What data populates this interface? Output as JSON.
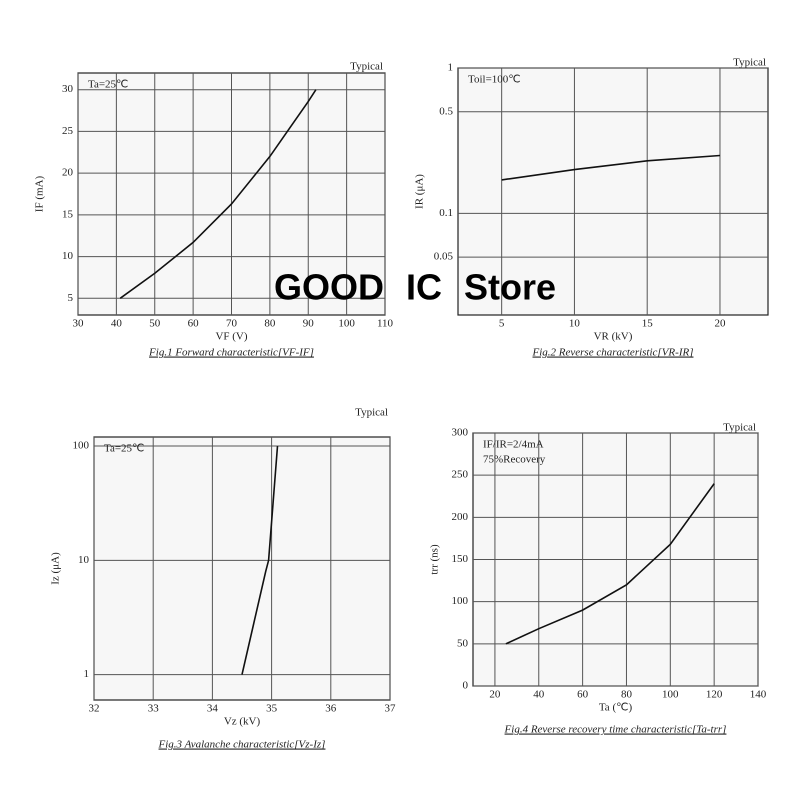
{
  "watermark": "GOOD IC Store",
  "chart_data": [
    {
      "type": "line",
      "title": "Fig.1 Forward characteristic[VF-IF]",
      "note": "Typical",
      "annotations": [
        "Ta=25℃"
      ],
      "x_label": "VF (V)",
      "y_label": "IF (mA)",
      "x": [
        41,
        50,
        60,
        70,
        80,
        90,
        92
      ],
      "values": [
        5,
        8,
        11.7,
        16.3,
        22,
        28.6,
        30
      ],
      "xlim": [
        30,
        110
      ],
      "xticks": [
        30,
        40,
        50,
        60,
        70,
        80,
        90,
        100,
        110
      ],
      "ylim": [
        3,
        32
      ],
      "yticks": [
        5,
        10,
        15,
        20,
        25,
        30
      ],
      "log_y": false,
      "grid": true,
      "color": "#111111"
    },
    {
      "type": "line",
      "title": "Fig.2 Reverse characteristic[VR-IR]",
      "note": "Typical",
      "annotations": [
        "Toil=100℃"
      ],
      "x_label": "VR (kV)",
      "y_label": "IR (μA)",
      "x": [
        5,
        10,
        15,
        20
      ],
      "values": [
        0.17,
        0.2,
        0.23,
        0.25
      ],
      "xlim": [
        2,
        23.3
      ],
      "xticks": [
        5,
        10,
        15,
        20
      ],
      "ylim": [
        0.02,
        1
      ],
      "yticks": [
        0.05,
        0.1,
        0.5,
        1
      ],
      "log_y": true,
      "grid": true,
      "color": "#111111"
    },
    {
      "type": "line",
      "title": "Fig.3 Avalanche characteristic[Vz-Iz]",
      "note": "Typical",
      "annotations": [
        "Ta=25℃"
      ],
      "x_label": "Vz (kV)",
      "y_label": "Iz (μA)",
      "x": [
        34.5,
        34.9,
        34.95,
        35.1
      ],
      "values": [
        1,
        8,
        10,
        100
      ],
      "xlim": [
        32,
        37
      ],
      "xticks": [
        32,
        33,
        34,
        35,
        36,
        37
      ],
      "ylim": [
        0.6,
        120
      ],
      "yticks": [
        1,
        10,
        100
      ],
      "log_y": true,
      "grid": true,
      "color": "#111111"
    },
    {
      "type": "line",
      "title": "Fig.4 Reverse recovery time characteristic[Ta-trr]",
      "note": "Typical",
      "annotations": [
        "IF/IR=2/4mA",
        "75%Recovery"
      ],
      "x_label": "Ta (℃)",
      "y_label": "trr (ns)",
      "x": [
        25,
        40,
        60,
        80,
        100,
        120
      ],
      "values": [
        50,
        68,
        90,
        120,
        168,
        240
      ],
      "xlim": [
        10,
        140
      ],
      "xticks": [
        20,
        40,
        60,
        80,
        100,
        120,
        140
      ],
      "ylim": [
        0,
        300
      ],
      "yticks": [
        0,
        50,
        100,
        150,
        200,
        250,
        300
      ],
      "log_y": false,
      "grid": true,
      "color": "#111111"
    }
  ]
}
